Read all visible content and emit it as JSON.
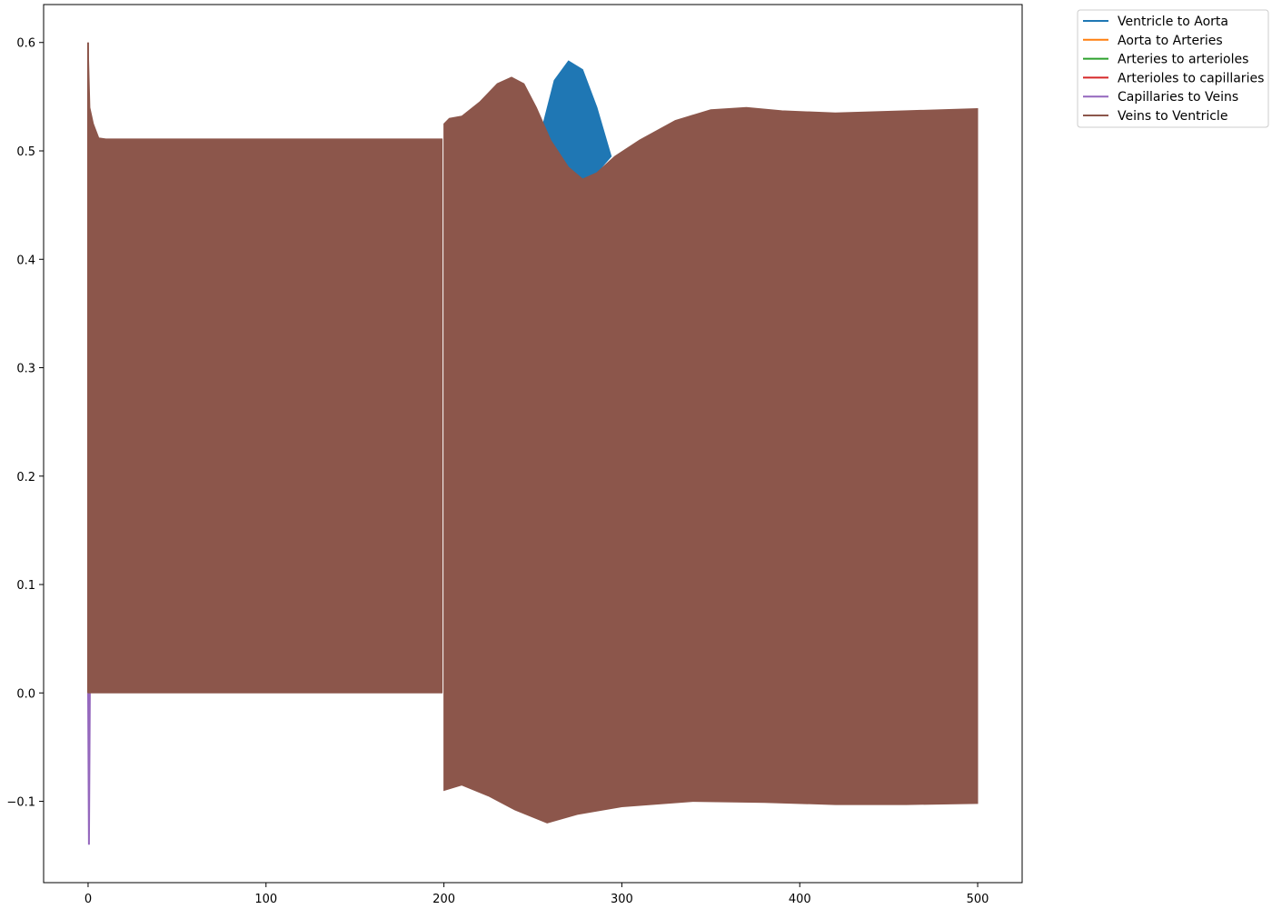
{
  "chart_data": {
    "type": "line",
    "title": "",
    "xlabel": "",
    "ylabel": "",
    "xlim": [
      -25,
      525
    ],
    "ylim": [
      -0.175,
      0.635
    ],
    "xticks": [
      0,
      100,
      200,
      300,
      400,
      500
    ],
    "yticks": [
      -0.1,
      0.0,
      0.1,
      0.2,
      0.3,
      0.4,
      0.5,
      0.6
    ],
    "ytick_labels": [
      "−0.1",
      "0.0",
      "0.1",
      "0.2",
      "0.3",
      "0.4",
      "0.5",
      "0.6"
    ],
    "grid": false,
    "legend_position": "outside-top-right",
    "series": [
      {
        "name": "Ventricle to Aorta",
        "color": "#1f77b4",
        "description": "rapid oscillation; upper envelope peaks near 0.58 around x=270",
        "upper_envelope": [
          [
            255,
            0.52
          ],
          [
            262,
            0.565
          ],
          [
            270,
            0.583
          ],
          [
            278,
            0.575
          ],
          [
            286,
            0.54
          ],
          [
            294,
            0.495
          ]
        ],
        "lower_envelope": [
          [
            255,
            0.52
          ],
          [
            262,
            0.495
          ],
          [
            270,
            0.48
          ],
          [
            278,
            0.474
          ],
          [
            286,
            0.48
          ],
          [
            294,
            0.495
          ]
        ]
      },
      {
        "name": "Aorta to Arteries",
        "color": "#ff7f0e"
      },
      {
        "name": "Arteries to arterioles",
        "color": "#2ca02c"
      },
      {
        "name": "Arterioles to capillaries",
        "color": "#d62728"
      },
      {
        "name": "Capillaries to Veins",
        "color": "#9467bd",
        "spike": [
          [
            0,
            0.0
          ],
          [
            0.5,
            -0.14
          ],
          [
            1,
            0.0
          ]
        ]
      },
      {
        "name": "Veins to Ventricle",
        "color": "#8c564b",
        "description": "rapid oscillation filling band between envelopes",
        "upper_envelope": [
          [
            0,
            0.6
          ],
          [
            1,
            0.54
          ],
          [
            3,
            0.525
          ],
          [
            6,
            0.512
          ],
          [
            10,
            0.511
          ],
          [
            100,
            0.511
          ],
          [
            199,
            0.511
          ],
          [
            200,
            0.525
          ],
          [
            203,
            0.53
          ],
          [
            210,
            0.532
          ],
          [
            220,
            0.545
          ],
          [
            230,
            0.562
          ],
          [
            238,
            0.568
          ],
          [
            245,
            0.562
          ],
          [
            252,
            0.54
          ],
          [
            260,
            0.51
          ],
          [
            270,
            0.485
          ],
          [
            278,
            0.474
          ],
          [
            286,
            0.48
          ],
          [
            296,
            0.495
          ],
          [
            310,
            0.51
          ],
          [
            330,
            0.528
          ],
          [
            350,
            0.538
          ],
          [
            370,
            0.54
          ],
          [
            390,
            0.537
          ],
          [
            420,
            0.535
          ],
          [
            460,
            0.537
          ],
          [
            500,
            0.539
          ]
        ],
        "lower_envelope": [
          [
            0,
            0.0
          ],
          [
            199,
            0.0
          ],
          [
            200,
            -0.09
          ],
          [
            210,
            -0.085
          ],
          [
            225,
            -0.095
          ],
          [
            240,
            -0.108
          ],
          [
            258,
            -0.12
          ],
          [
            275,
            -0.112
          ],
          [
            300,
            -0.105
          ],
          [
            340,
            -0.1
          ],
          [
            380,
            -0.101
          ],
          [
            420,
            -0.103
          ],
          [
            460,
            -0.103
          ],
          [
            500,
            -0.102
          ]
        ]
      }
    ]
  }
}
